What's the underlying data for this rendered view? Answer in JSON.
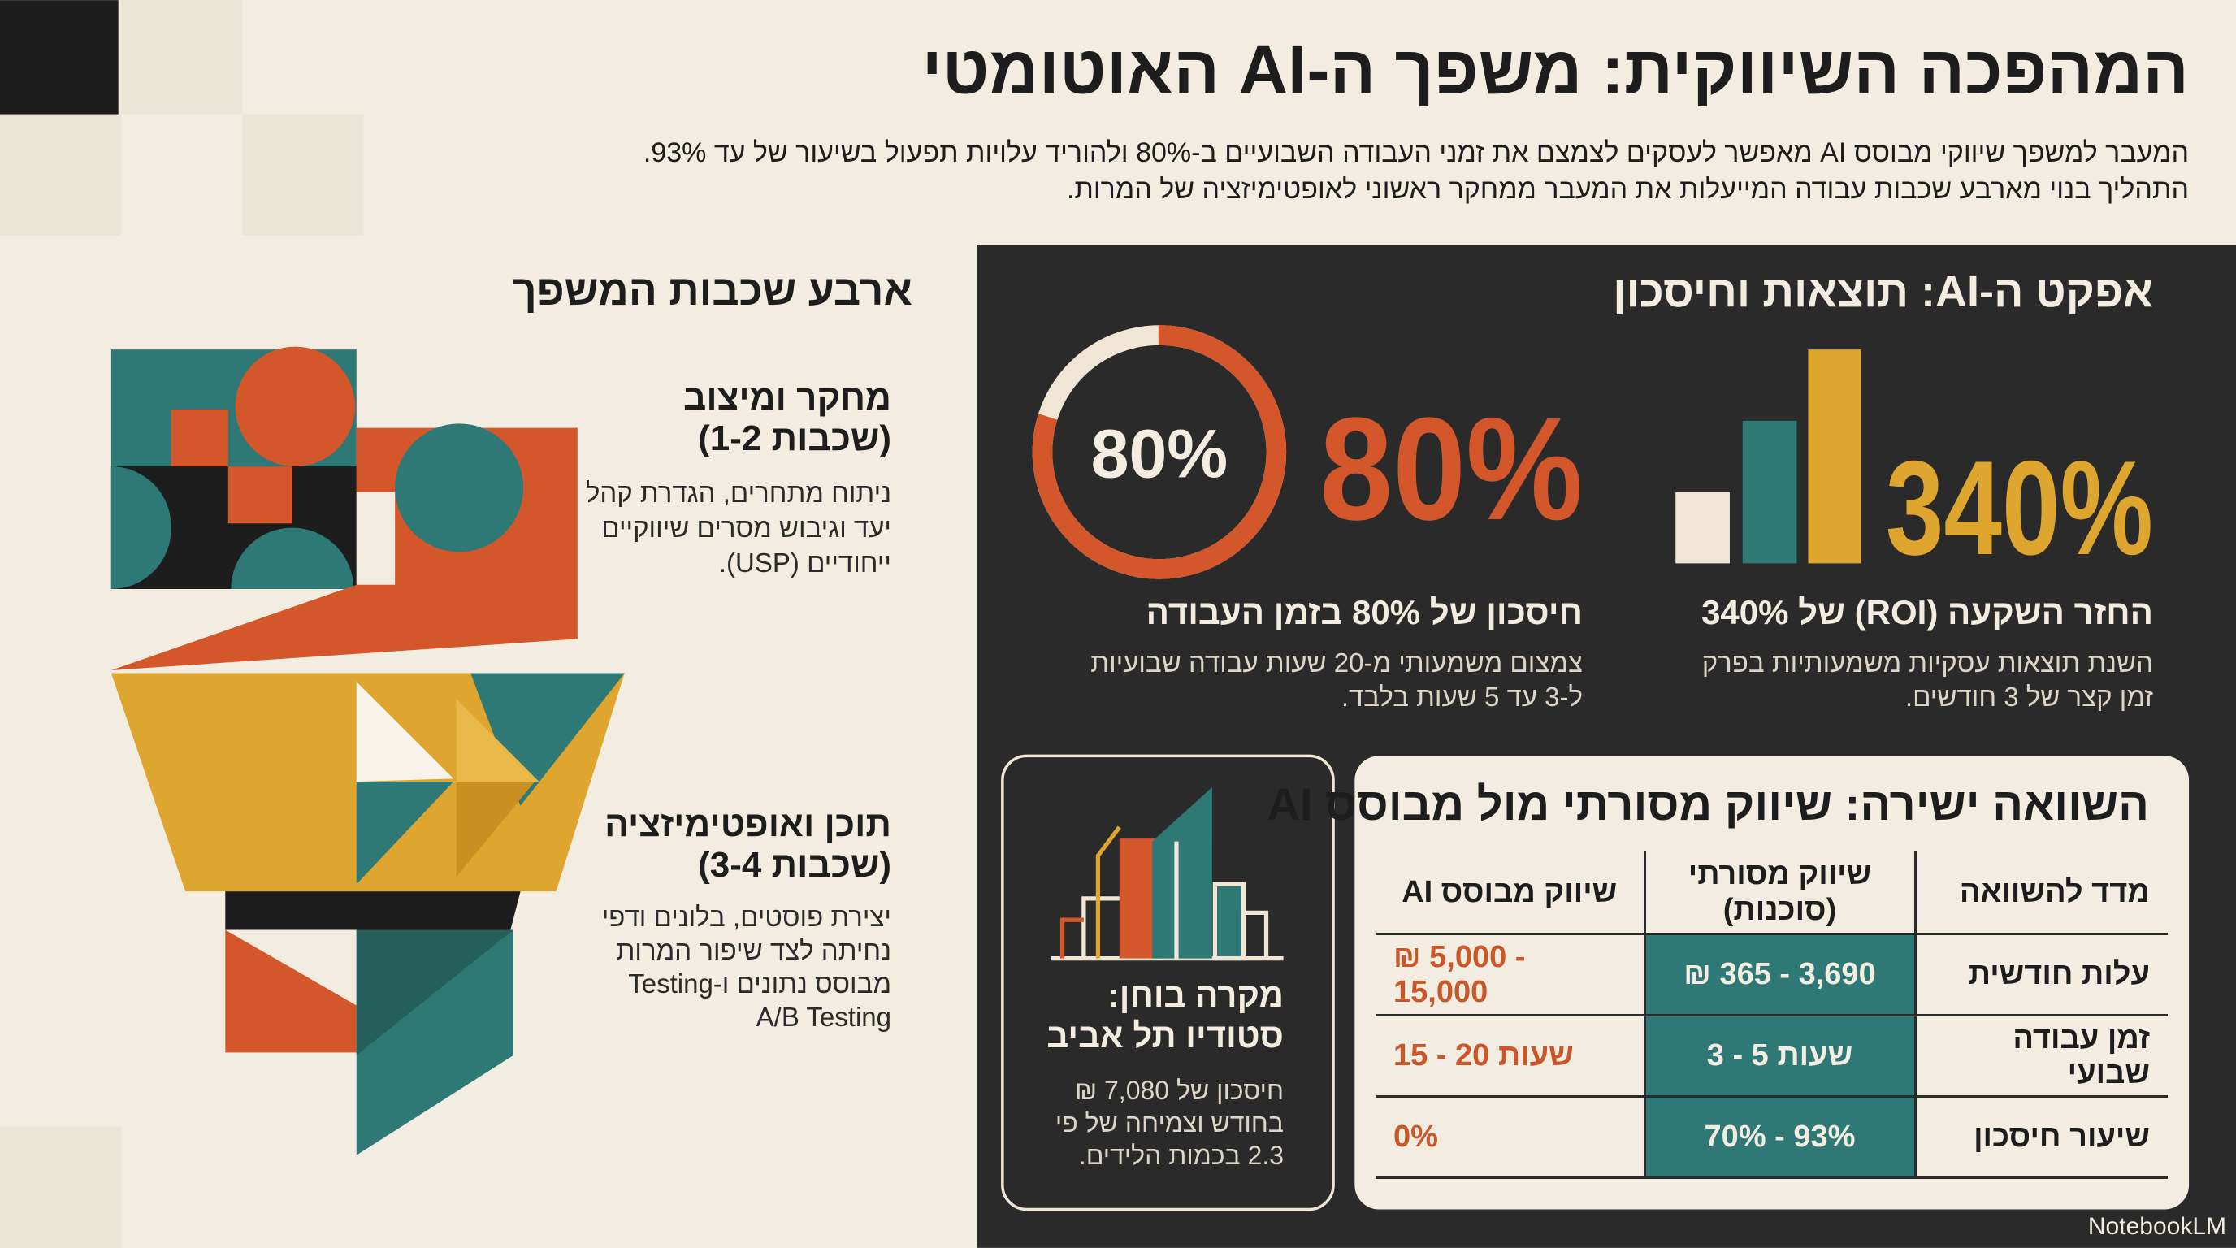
{
  "header": {
    "title": "המהפכה השיווקית: משפך ה-AI האוטומטי",
    "subtitle": [
      "המעבר למשפך שיווקי מבוסס AI מאפשר לעסקים לצמצם את זמני העבודה השבועיים ב-80% ולהוריד עלויות תפעול בשיעור של עד 93%.",
      "התהליך בנוי מארבע שכבות עבודה המייעלות את המעבר ממחקר ראשוני לאופטימיזציה של המרות."
    ]
  },
  "funnel": {
    "heading": "ארבע שכבות המשפך",
    "layers": [
      {
        "title": "מחקר ומיצוב",
        "range": "(שכבות 1-2)",
        "description": [
          "ניתוח מתחרים, הגדרת קהל",
          "יעד וגיבוש מסרים שיווקיים",
          "ייחודיים (USP)."
        ]
      },
      {
        "title": "תוכן ואופטימיזציה",
        "range": "(שכבות 3-4)",
        "description": [
          "יצירת פוסטים, בלונים ודפי",
          "נחיתה לצד שיפור המרות",
          "מבוסס נתונים ו-Testing",
          "A/B Testing"
        ]
      }
    ]
  },
  "effect": {
    "heading": "אפקט ה-AI: תוצאות וחיסכון",
    "roi": {
      "value_label": "340%",
      "title": "החזר השקעה (ROI) של 340%",
      "description": [
        "השנת תוצאות עסקיות משמעותיות בפרק",
        "זמן קצר של 3 חודשים."
      ]
    },
    "savings": {
      "ring_percent": 80,
      "ring_label": "80%",
      "value_label": "80%",
      "title": "חיסכון של 80% בזמן העבודה",
      "description": [
        "צמצום משמעותי מ-20 שעות עבודה שבועיות",
        "ל-3 עד 5 שעות בלבד."
      ]
    }
  },
  "case_study": {
    "title": [
      "מקרה בוחן:",
      "סטודיו תל אביב"
    ],
    "description": [
      "חיסכון של 7,080 ₪",
      "בחודש וצמיחה של פי",
      "2.3 בכמות הלידים."
    ]
  },
  "comparison": {
    "title": "השוואה ישירה: שיווק מסורתי מול מבוסס AI",
    "columns": [
      "מדד להשוואה",
      "שיווק מסורתי (סוכנות)",
      "שיווק מבוסס AI"
    ],
    "rows": [
      [
        "עלות חודשית",
        "₪ 365 - 3,690",
        "₪ 5,000 - 15,000"
      ],
      [
        "זמן עבודה שבועי",
        "3 - 5 שעות",
        "15 - 20 שעות"
      ],
      [
        "שיעור חיסכון",
        "70% - 93%",
        "0%"
      ]
    ]
  },
  "footer": {
    "brand": "NotebookLM"
  }
}
